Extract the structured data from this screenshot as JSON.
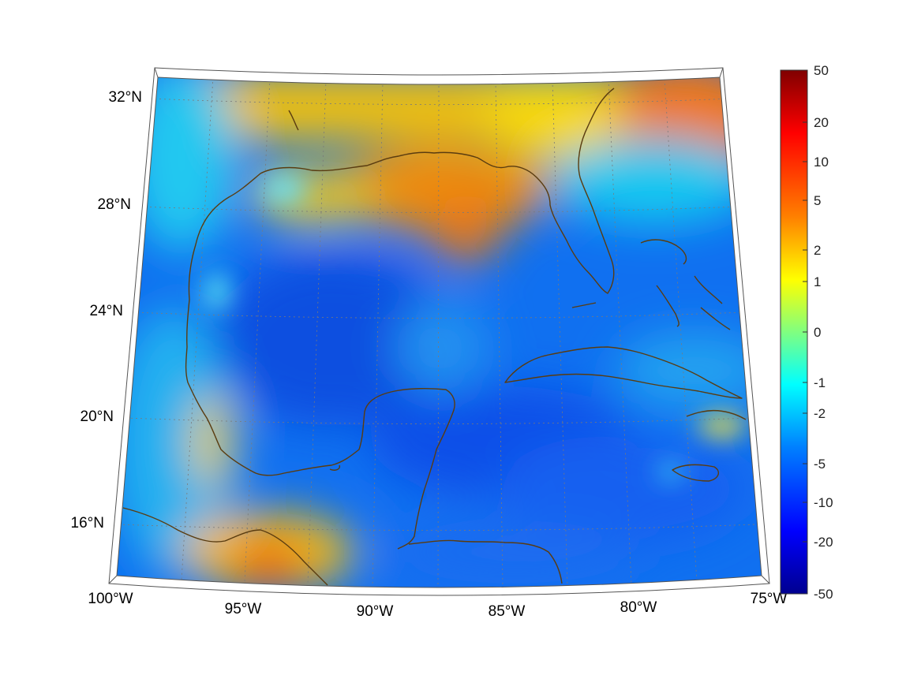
{
  "map": {
    "lon_ticks": [
      "100°W",
      "95°W",
      "90°W",
      "85°W",
      "80°W",
      "75°W"
    ],
    "lat_ticks": [
      "32°N",
      "28°N",
      "24°N",
      "20°N",
      "16°N"
    ],
    "extent": {
      "lon": [
        -100,
        -75
      ],
      "lat": [
        14.5,
        33
      ]
    },
    "coastline_color": "#5a3c10",
    "gridline_style": "dotted"
  },
  "colorbar": {
    "tick_labels": [
      "50",
      "20",
      "10",
      "5",
      "2",
      "1",
      "0",
      "-1",
      "-2",
      "-5",
      "-10",
      "-20",
      "-50"
    ],
    "colormap": "jet",
    "colors": [
      "#00008f",
      "#0000ff",
      "#0080ff",
      "#00ffff",
      "#80ff80",
      "#ffff00",
      "#ff8000",
      "#ff0000",
      "#800000"
    ]
  }
}
